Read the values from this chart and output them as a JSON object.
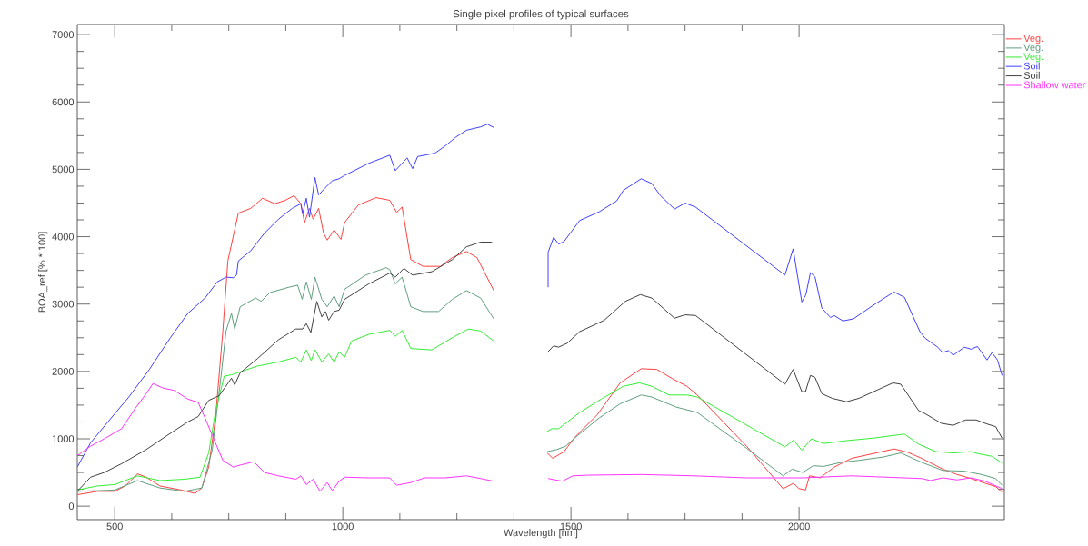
{
  "chart_data": {
    "type": "line",
    "title": "Single pixel profiles of typical surfaces",
    "xlabel": "Wavelength [nm]",
    "ylabel": "BOA_ref [% * 100]",
    "xlim": [
      418,
      2450
    ],
    "ylim": [
      -200,
      7150
    ],
    "xticks": [
      500,
      1000,
      1500,
      2000
    ],
    "yticks": [
      0,
      1000,
      2000,
      3000,
      4000,
      5000,
      6000,
      7000
    ],
    "legend": "top right",
    "series": [
      {
        "name": "Veg.",
        "color": "#ff4040",
        "x": [
          418,
          462,
          500,
          523,
          550,
          569,
          599,
          645,
          676,
          691,
          706,
          721,
          737,
          748,
          771,
          798,
          824,
          851,
          874,
          893,
          908,
          916,
          927,
          935,
          947,
          958,
          966,
          981,
          996,
          1004,
          1034,
          1073,
          1103,
          1118,
          1130,
          1149,
          1176,
          1214,
          1240,
          1271,
          1294,
          1331,
          1390,
          1448,
          1460,
          1485,
          1508,
          1558,
          1608,
          1654,
          1688,
          1723,
          1754,
          1777,
          1885,
          1965,
          1988,
          2000,
          2014,
          2023,
          2046,
          2077,
          2115,
          2169,
          2208,
          2238,
          2269,
          2315,
          2346,
          2377,
          2408,
          2431,
          2445
        ],
        "values": [
          170,
          220,
          220,
          300,
          480,
          430,
          300,
          240,
          190,
          270,
          580,
          1310,
          2600,
          3640,
          4350,
          4420,
          4570,
          4490,
          4540,
          4610,
          4490,
          4210,
          4420,
          4260,
          4420,
          4050,
          3950,
          4100,
          3960,
          4210,
          4470,
          4580,
          4540,
          4360,
          4440,
          3660,
          3560,
          3560,
          3690,
          3780,
          3690,
          3200,
          null,
          790,
          710,
          810,
          1020,
          1360,
          1830,
          2040,
          2030,
          1890,
          1780,
          1650,
          890,
          260,
          340,
          260,
          240,
          450,
          420,
          580,
          710,
          790,
          850,
          800,
          710,
          550,
          470,
          410,
          340,
          290,
          210
        ]
      },
      {
        "name": "Veg.",
        "color": "#5f9f7f",
        "x": [
          418,
          462,
          500,
          550,
          599,
          653,
          691,
          714,
          733,
          744,
          756,
          763,
          775,
          809,
          821,
          840,
          882,
          901,
          911,
          920,
          931,
          939,
          954,
          966,
          981,
          992,
          1004,
          1050,
          1095,
          1103,
          1115,
          1130,
          1149,
          1176,
          1210,
          1240,
          1271,
          1302,
          1331,
          1390,
          1448,
          1469,
          1488,
          1515,
          1562,
          1608,
          1654,
          1677,
          1731,
          1777,
          1885,
          1965,
          1985,
          2008,
          2031,
          2054,
          2092,
          2131,
          2185,
          2223,
          2269,
          2315,
          2362,
          2400,
          2431,
          2445
        ],
        "values": [
          220,
          230,
          240,
          380,
          270,
          220,
          270,
          840,
          1930,
          2600,
          2860,
          2630,
          2960,
          3090,
          3040,
          3170,
          3250,
          3280,
          3070,
          3330,
          3070,
          3400,
          3070,
          2960,
          3120,
          2960,
          3220,
          3430,
          3540,
          3510,
          3300,
          3400,
          2960,
          2890,
          2890,
          3070,
          3200,
          3090,
          2780,
          null,
          810,
          840,
          890,
          1050,
          1310,
          1520,
          1650,
          1620,
          1470,
          1390,
          860,
          450,
          550,
          500,
          600,
          590,
          650,
          680,
          730,
          790,
          650,
          530,
          520,
          470,
          410,
          310
        ]
      },
      {
        "name": "Veg.",
        "color": "#33ee33",
        "x": [
          418,
          462,
          500,
          550,
          599,
          653,
          687,
          706,
          721,
          740,
          756,
          782,
          813,
          859,
          897,
          908,
          920,
          931,
          939,
          954,
          969,
          981,
          992,
          1004,
          1019,
          1057,
          1103,
          1115,
          1130,
          1149,
          1195,
          1240,
          1275,
          1302,
          1331,
          1390,
          1446,
          1458,
          1473,
          1519,
          1569,
          1615,
          1650,
          1677,
          1715,
          1754,
          1777,
          1969,
          1988,
          2006,
          2027,
          2054,
          2100,
          2162,
          2231,
          2262,
          2300,
          2338,
          2377,
          2392,
          2423,
          2445
        ],
        "values": [
          240,
          300,
          320,
          450,
          380,
          400,
          430,
          790,
          1410,
          1930,
          1950,
          2010,
          2080,
          2140,
          2210,
          2140,
          2320,
          2160,
          2320,
          2140,
          2260,
          2140,
          2290,
          2210,
          2450,
          2550,
          2610,
          2520,
          2610,
          2340,
          2320,
          2500,
          2630,
          2600,
          2450,
          null,
          1100,
          1150,
          1150,
          1390,
          1600,
          1780,
          1830,
          1780,
          1650,
          1650,
          1620,
          880,
          980,
          830,
          1000,
          930,
          970,
          1010,
          1070,
          920,
          810,
          790,
          810,
          780,
          740,
          640
        ]
      },
      {
        "name": "Soil",
        "color": "#4040ff",
        "x": [
          418,
          447,
          485,
          531,
          576,
          622,
          660,
          698,
          725,
          744,
          760,
          767,
          771,
          798,
          828,
          859,
          889,
          908,
          912,
          920,
          927,
          939,
          947,
          962,
          977,
          992,
          1004,
          1057,
          1103,
          1115,
          1141,
          1153,
          1164,
          1202,
          1225,
          1248,
          1271,
          1302,
          1317,
          1331,
          1390,
          1450,
          1450,
          1462,
          1473,
          1485,
          1519,
          1562,
          1600,
          1615,
          1654,
          1677,
          1696,
          1727,
          1750,
          1773,
          1969,
          1987,
          2006,
          2015,
          2025,
          2035,
          2050,
          2069,
          2077,
          2096,
          2119,
          2162,
          2208,
          2231,
          2265,
          2277,
          2304,
          2315,
          2327,
          2338,
          2362,
          2377,
          2391,
          2412,
          2423,
          2435,
          2445
        ],
        "values": [
          580,
          940,
          1250,
          1620,
          2030,
          2500,
          2860,
          3090,
          3330,
          3400,
          3390,
          3430,
          3640,
          3790,
          4050,
          4260,
          4420,
          4490,
          4340,
          4570,
          4290,
          4880,
          4620,
          4730,
          4830,
          4860,
          4910,
          5090,
          5210,
          4980,
          5170,
          5010,
          5190,
          5240,
          5350,
          5480,
          5580,
          5630,
          5670,
          5620,
          null,
          3250,
          3770,
          3990,
          3890,
          3930,
          4240,
          4370,
          4530,
          4690,
          4860,
          4790,
          4610,
          4410,
          4500,
          4440,
          3430,
          3820,
          3030,
          3140,
          3470,
          3400,
          2940,
          2800,
          2830,
          2750,
          2780,
          2980,
          3180,
          3100,
          2590,
          2490,
          2360,
          2280,
          2310,
          2240,
          2360,
          2330,
          2370,
          2170,
          2280,
          2170,
          1940
        ]
      },
      {
        "name": "Soil",
        "color": "#404040",
        "x": [
          418,
          447,
          477,
          515,
          569,
          615,
          660,
          683,
          706,
          729,
          756,
          763,
          775,
          813,
          859,
          897,
          912,
          920,
          930,
          943,
          954,
          962,
          969,
          981,
          992,
          1004,
          1057,
          1103,
          1115,
          1134,
          1153,
          1195,
          1240,
          1271,
          1302,
          1325,
          1331,
          1390,
          1448,
          1462,
          1473,
          1492,
          1519,
          1573,
          1619,
          1652,
          1677,
          1727,
          1750,
          1773,
          1969,
          1987,
          2006,
          2014,
          2025,
          2035,
          2050,
          2073,
          2104,
          2131,
          2206,
          2223,
          2262,
          2277,
          2312,
          2338,
          2365,
          2388,
          2412,
          2431,
          2445
        ],
        "values": [
          220,
          430,
          500,
          630,
          840,
          1050,
          1250,
          1330,
          1570,
          1640,
          1900,
          1800,
          1980,
          2190,
          2470,
          2630,
          2630,
          2710,
          2580,
          3040,
          2810,
          2890,
          2760,
          2890,
          2910,
          3070,
          3300,
          3460,
          3400,
          3530,
          3430,
          3480,
          3660,
          3850,
          3920,
          3920,
          3900,
          null,
          2280,
          2380,
          2360,
          2420,
          2590,
          2760,
          3040,
          3140,
          3090,
          2790,
          2840,
          2830,
          1810,
          2030,
          1700,
          1700,
          1940,
          1910,
          1670,
          1600,
          1550,
          1600,
          1830,
          1810,
          1420,
          1370,
          1230,
          1200,
          1280,
          1280,
          1220,
          1180,
          1010
        ]
      },
      {
        "name": "Shallow water",
        "color": "#ff33ff",
        "x": [
          418,
          447,
          477,
          515,
          546,
          569,
          584,
          607,
          630,
          660,
          683,
          698,
          714,
          737,
          760,
          775,
          805,
          828,
          859,
          897,
          908,
          920,
          935,
          950,
          966,
          977,
          992,
          1004,
          1057,
          1103,
          1118,
          1149,
          1179,
          1225,
          1271,
          1302,
          1331,
          1390,
          1450,
          1481,
          1504,
          1538,
          1654,
          1769,
          1885,
          2008,
          2115,
          2192,
          2269,
          2288,
          2315,
          2346,
          2377,
          2408,
          2445
        ],
        "values": [
          750,
          890,
          1000,
          1150,
          1460,
          1670,
          1820,
          1750,
          1720,
          1590,
          1540,
          1310,
          1050,
          680,
          580,
          610,
          660,
          500,
          450,
          400,
          450,
          320,
          400,
          220,
          350,
          230,
          370,
          430,
          420,
          420,
          310,
          350,
          420,
          420,
          450,
          410,
          370,
          null,
          410,
          370,
          450,
          460,
          470,
          450,
          420,
          420,
          450,
          430,
          410,
          380,
          420,
          390,
          420,
          370,
          260
        ]
      }
    ]
  }
}
